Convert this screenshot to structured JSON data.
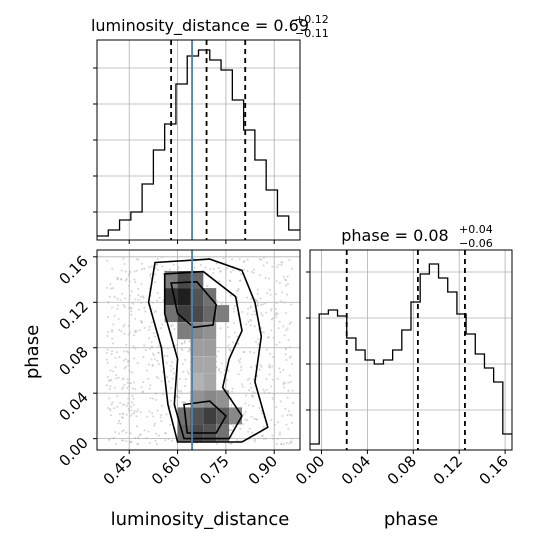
{
  "chart_data": {
    "type": "corner",
    "parameters": [
      "luminosity_distance",
      "phase"
    ],
    "diag_hist_1": {
      "name": "luminosity_distance",
      "title_name": "luminosity_distance",
      "title_value": "0.69",
      "title_plus": "+0.12",
      "title_minus": "−0.11",
      "bin_edges": [
        0.35,
        0.385,
        0.42,
        0.455,
        0.49,
        0.525,
        0.56,
        0.595,
        0.63,
        0.665,
        0.7,
        0.735,
        0.77,
        0.805,
        0.84,
        0.875,
        0.91,
        0.945,
        0.98
      ],
      "counts": [
        0.02,
        0.05,
        0.1,
        0.14,
        0.28,
        0.45,
        0.58,
        0.78,
        0.92,
        0.95,
        0.9,
        0.85,
        0.7,
        0.55,
        0.4,
        0.25,
        0.12,
        0.05
      ],
      "quantiles": [
        0.58,
        0.69,
        0.81
      ],
      "truth": 0.645,
      "xlim": [
        0.35,
        0.98
      ],
      "ylim": [
        0,
        1.0
      ]
    },
    "diag_hist_2": {
      "name": "phase",
      "title_name": "phase",
      "title_value": "0.08",
      "title_plus": "+0.04",
      "title_minus": "−0.06",
      "bin_edges": [
        -0.01,
        -0.002,
        0.006,
        0.014,
        0.022,
        0.03,
        0.038,
        0.046,
        0.054,
        0.062,
        0.07,
        0.078,
        0.086,
        0.094,
        0.102,
        0.11,
        0.118,
        0.126,
        0.134,
        0.142,
        0.15,
        0.158,
        0.166
      ],
      "counts": [
        0.03,
        0.68,
        0.7,
        0.67,
        0.56,
        0.5,
        0.45,
        0.43,
        0.45,
        0.5,
        0.6,
        0.74,
        0.88,
        0.93,
        0.86,
        0.79,
        0.68,
        0.58,
        0.48,
        0.41,
        0.34,
        0.08
      ],
      "quantiles": [
        0.022,
        0.084,
        0.125
      ],
      "xlim": [
        -0.01,
        0.166
      ],
      "ylim": [
        0,
        1.0
      ]
    },
    "joint": {
      "x": "luminosity_distance",
      "y": "phase",
      "xlim": [
        0.35,
        0.98
      ],
      "ylim": [
        -0.01,
        0.166
      ],
      "truth_x": 0.645,
      "density_cells": [
        [
          0.58,
          0.14,
          0.5
        ],
        [
          0.62,
          0.14,
          0.75
        ],
        [
          0.66,
          0.14,
          0.6
        ],
        [
          0.58,
          0.125,
          0.85
        ],
        [
          0.62,
          0.125,
          0.95
        ],
        [
          0.66,
          0.125,
          0.7
        ],
        [
          0.7,
          0.125,
          0.55
        ],
        [
          0.74,
          0.11,
          0.5
        ],
        [
          0.62,
          0.11,
          0.8
        ],
        [
          0.66,
          0.11,
          0.75
        ],
        [
          0.7,
          0.11,
          0.6
        ],
        [
          0.58,
          0.11,
          0.55
        ],
        [
          0.62,
          0.095,
          0.5
        ],
        [
          0.66,
          0.095,
          0.45
        ],
        [
          0.7,
          0.095,
          0.4
        ],
        [
          0.66,
          0.08,
          0.35
        ],
        [
          0.7,
          0.08,
          0.35
        ],
        [
          0.66,
          0.065,
          0.3
        ],
        [
          0.7,
          0.065,
          0.3
        ],
        [
          0.7,
          0.05,
          0.3
        ],
        [
          0.66,
          0.05,
          0.25
        ],
        [
          0.66,
          0.035,
          0.4
        ],
        [
          0.7,
          0.035,
          0.45
        ],
        [
          0.74,
          0.035,
          0.4
        ],
        [
          0.62,
          0.02,
          0.55
        ],
        [
          0.66,
          0.02,
          0.7
        ],
        [
          0.7,
          0.02,
          0.8
        ],
        [
          0.74,
          0.02,
          0.65
        ],
        [
          0.78,
          0.02,
          0.45
        ],
        [
          0.62,
          0.005,
          0.6
        ],
        [
          0.66,
          0.005,
          0.75
        ],
        [
          0.7,
          0.005,
          0.7
        ],
        [
          0.74,
          0.005,
          0.55
        ]
      ],
      "contours": [
        [
          [
            0.53,
            0.155
          ],
          [
            0.7,
            0.158
          ],
          [
            0.8,
            0.148
          ],
          [
            0.84,
            0.12
          ],
          [
            0.86,
            0.09
          ],
          [
            0.84,
            0.05
          ],
          [
            0.88,
            0.01
          ],
          [
            0.8,
            -0.003
          ],
          [
            0.6,
            -0.003
          ],
          [
            0.57,
            0.03
          ],
          [
            0.55,
            0.08
          ],
          [
            0.51,
            0.12
          ]
        ],
        [
          [
            0.56,
            0.145
          ],
          [
            0.68,
            0.147
          ],
          [
            0.78,
            0.125
          ],
          [
            0.8,
            0.095
          ],
          [
            0.76,
            0.07
          ],
          [
            0.74,
            0.045
          ],
          [
            0.8,
            0.02
          ],
          [
            0.76,
            0.0
          ],
          [
            0.62,
            0.0
          ],
          [
            0.59,
            0.03
          ],
          [
            0.6,
            0.07
          ],
          [
            0.56,
            0.11
          ]
        ],
        [
          [
            0.58,
            0.137
          ],
          [
            0.66,
            0.138
          ],
          [
            0.72,
            0.118
          ],
          [
            0.71,
            0.1
          ],
          [
            0.65,
            0.098
          ],
          [
            0.6,
            0.11
          ]
        ],
        [
          [
            0.62,
            0.03
          ],
          [
            0.7,
            0.033
          ],
          [
            0.75,
            0.02
          ],
          [
            0.72,
            0.005
          ],
          [
            0.63,
            0.005
          ]
        ]
      ]
    },
    "xlabel_1": "luminosity_distance",
    "xlabel_2": "phase",
    "ylabel_joint": "phase",
    "xticks_1": [
      0.45,
      0.6,
      0.75,
      0.9
    ],
    "xtick_labels_1": [
      "0.45",
      "0.60",
      "0.75",
      "0.90"
    ],
    "xticks_2": [
      0.0,
      0.04,
      0.08,
      0.12,
      0.16
    ],
    "xtick_labels_2": [
      "0.00",
      "0.04",
      "0.08",
      "0.12",
      "0.16"
    ],
    "yticks_joint": [
      0.0,
      0.04,
      0.08,
      0.12,
      0.16
    ],
    "ytick_labels_joint": [
      "0.00",
      "0.04",
      "0.08",
      "0.12",
      "0.16"
    ],
    "colors": {
      "truth": "#4682b4",
      "line": "#000000",
      "grid": "#b0b0b0"
    }
  }
}
